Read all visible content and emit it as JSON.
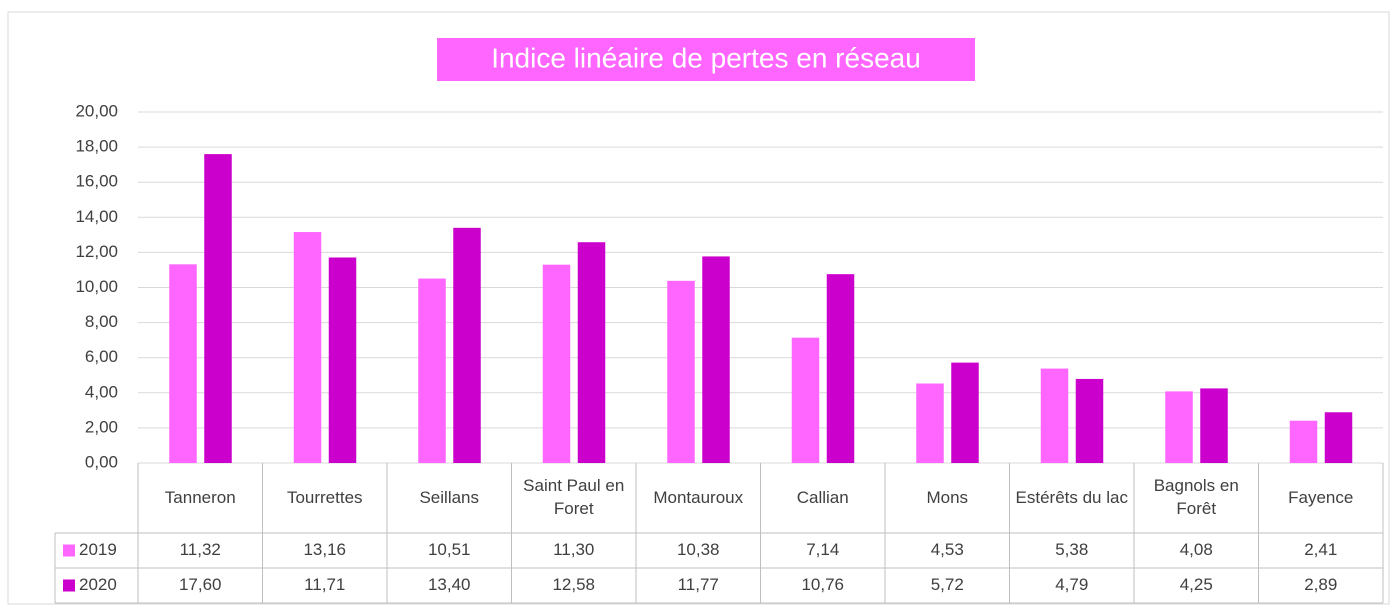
{
  "chart_data": {
    "type": "bar",
    "title": "Indice linéaire de pertes en réseau",
    "categories": [
      "Tanneron",
      "Tourrettes",
      "Seillans",
      "Saint Paul en Foret",
      "Montauroux",
      "Callian",
      "Mons",
      "Estérêts du lac",
      "Bagnols en Forêt",
      "Fayence"
    ],
    "series": [
      {
        "name": "2019",
        "color": "#ff66ff",
        "values": [
          11.32,
          13.16,
          10.51,
          11.3,
          10.38,
          7.14,
          4.53,
          5.38,
          4.08,
          2.41
        ],
        "value_labels": [
          "11,32",
          "13,16",
          "10,51",
          "11,30",
          "10,38",
          "7,14",
          "4,53",
          "5,38",
          "4,08",
          "2,41"
        ]
      },
      {
        "name": "2020",
        "color": "#cc00cc",
        "values": [
          17.6,
          11.71,
          13.4,
          12.58,
          11.77,
          10.76,
          5.72,
          4.79,
          4.25,
          2.89
        ],
        "value_labels": [
          "17,60",
          "11,71",
          "13,40",
          "12,58",
          "11,77",
          "10,76",
          "5,72",
          "4,79",
          "4,25",
          "2,89"
        ]
      }
    ],
    "ylim": [
      0,
      20
    ],
    "yticks": [
      {
        "value": 0,
        "label": "0,00"
      },
      {
        "value": 2,
        "label": "2,00"
      },
      {
        "value": 4,
        "label": "4,00"
      },
      {
        "value": 6,
        "label": "6,00"
      },
      {
        "value": 8,
        "label": "8,00"
      },
      {
        "value": 10,
        "label": "10,00"
      },
      {
        "value": 12,
        "label": "12,00"
      },
      {
        "value": 14,
        "label": "14,00"
      },
      {
        "value": 16,
        "label": "16,00"
      },
      {
        "value": 18,
        "label": "18,00"
      },
      {
        "value": 20,
        "label": "20,00"
      }
    ],
    "grid": true,
    "title_background": "#ff66ff"
  }
}
